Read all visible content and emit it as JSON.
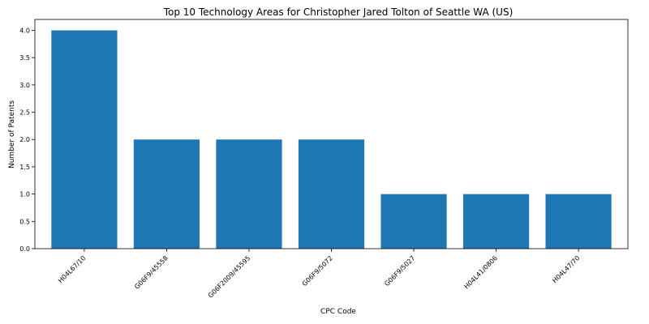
{
  "chart_data": {
    "type": "bar",
    "title": "Top 10 Technology Areas for Christopher Jared Tolton of Seattle WA (US)",
    "xlabel": "CPC Code",
    "ylabel": "Number of Patents",
    "categories": [
      "H04L67/10",
      "G06F9/45558",
      "G06F2009/45595",
      "G06F9/5072",
      "G06F9/5027",
      "H04L41/0806",
      "H04L47/70"
    ],
    "values": [
      4,
      2,
      2,
      2,
      1,
      1,
      1
    ],
    "ylim": [
      0,
      4.2
    ],
    "yticks": [
      0.0,
      0.5,
      1.0,
      1.5,
      2.0,
      2.5,
      3.0,
      3.5,
      4.0
    ],
    "ytick_labels": [
      "0.0",
      "0.5",
      "1.0",
      "1.5",
      "2.0",
      "2.5",
      "3.0",
      "3.5",
      "4.0"
    ],
    "grid": false,
    "bar_color": "#1f77b4"
  }
}
